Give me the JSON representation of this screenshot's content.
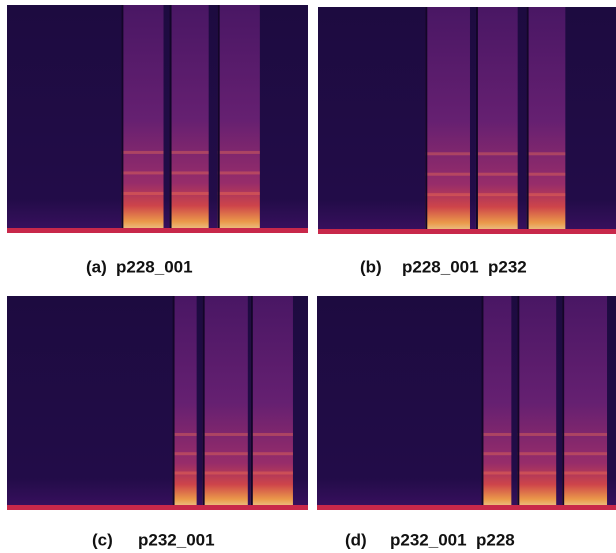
{
  "panels": [
    {
      "label": "(a)",
      "caption": "p228_001"
    },
    {
      "label": "(b)",
      "caption": "p228_001  p232"
    },
    {
      "label": "(c)",
      "caption": "p232_001"
    },
    {
      "label": "(d)",
      "caption": "p232_001  p228"
    }
  ]
}
